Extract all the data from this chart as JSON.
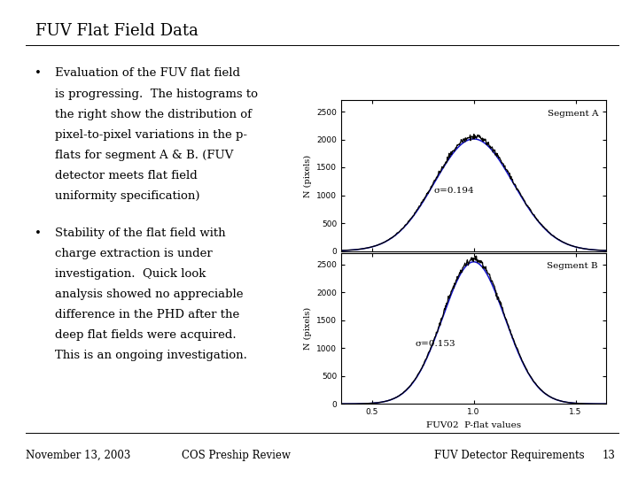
{
  "title": "FUV Flat Field Data",
  "bullet1_lines": [
    "Evaluation of the FUV flat field",
    "is progressing.  The histograms to",
    "the right show the distribution of",
    "pixel-to-pixel variations in the p-",
    "flats for segment A & B. (FUV",
    "detector meets flat field",
    "uniformity specification)"
  ],
  "bullet2_lines": [
    "Stability of the flat field with",
    "charge extraction is under",
    "investigation.  Quick look",
    "analysis showed no appreciable",
    "difference in the PHD after the",
    "deep flat fields were acquired.",
    "This is an ongoing investigation."
  ],
  "footer_left": "November 13, 2003",
  "footer_center": "COS Preship Review",
  "footer_right": "FUV Detector Requirements",
  "footer_page": "13",
  "seg_a_label": "Segment A",
  "seg_b_label": "Segment B",
  "seg_a_sigma": "σ=0.194",
  "seg_b_sigma": "σ=0.153",
  "xlabel": "FUV02  P-flat values",
  "ylabel": "N (pixels)",
  "xticks": [
    0.5,
    1.0,
    1.5
  ],
  "yticks_a": [
    0,
    500,
    1000,
    1500,
    2000,
    2500
  ],
  "yticks_b": [
    0,
    500,
    1000,
    1500,
    2000,
    2500
  ],
  "seg_a_mu": 1.0,
  "seg_a_std": 0.194,
  "seg_a_peak": 2050,
  "seg_b_mu": 1.0,
  "seg_b_std": 0.153,
  "seg_b_peak": 2600,
  "background_color": "#ffffff",
  "text_color": "#000000",
  "curve_color_black": "#000000",
  "curve_color_blue": "#1111cc",
  "title_fontsize": 13,
  "body_fontsize": 9.5,
  "footer_fontsize": 8.5
}
